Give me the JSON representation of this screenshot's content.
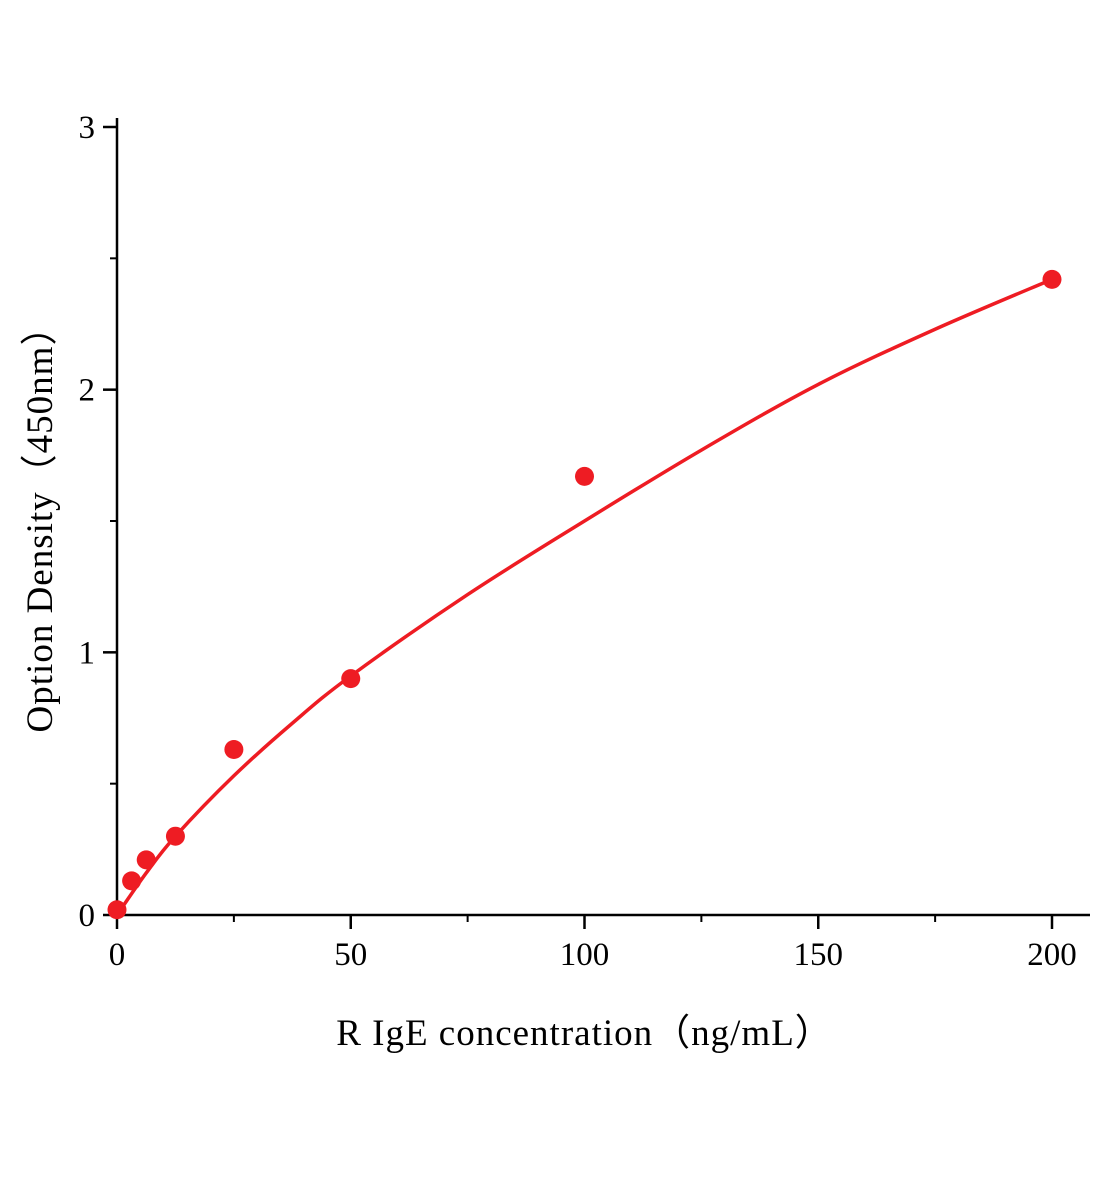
{
  "chart_data": {
    "type": "scatter",
    "title": "",
    "xlabel": "R IgE  concentration（ng/mL）",
    "ylabel": "Option Density（450nm）",
    "xlim": [
      0,
      200
    ],
    "ylim": [
      0,
      3
    ],
    "xticks": [
      0,
      50,
      100,
      150,
      200
    ],
    "yticks": [
      0,
      1,
      2,
      3
    ],
    "x_minor_step": 25,
    "y_minor_step": 0.5,
    "grid": false,
    "legend": "none",
    "points": [
      {
        "x": 0,
        "y": 0.02
      },
      {
        "x": 3.125,
        "y": 0.13
      },
      {
        "x": 6.25,
        "y": 0.21
      },
      {
        "x": 12.5,
        "y": 0.3
      },
      {
        "x": 25,
        "y": 0.63
      },
      {
        "x": 50,
        "y": 0.9
      },
      {
        "x": 100,
        "y": 1.67
      },
      {
        "x": 200,
        "y": 2.42
      }
    ],
    "curve": [
      {
        "x": 0,
        "y": 0.0
      },
      {
        "x": 6.25,
        "y": 0.16
      },
      {
        "x": 12.5,
        "y": 0.3
      },
      {
        "x": 25,
        "y": 0.53
      },
      {
        "x": 37.5,
        "y": 0.73
      },
      {
        "x": 50,
        "y": 0.91
      },
      {
        "x": 75,
        "y": 1.22
      },
      {
        "x": 100,
        "y": 1.5
      },
      {
        "x": 125,
        "y": 1.77
      },
      {
        "x": 150,
        "y": 2.02
      },
      {
        "x": 175,
        "y": 2.23
      },
      {
        "x": 200,
        "y": 2.42
      }
    ],
    "point_color": "#ee1c23",
    "line_color": "#ee1c23",
    "axis_color": "#000000"
  }
}
